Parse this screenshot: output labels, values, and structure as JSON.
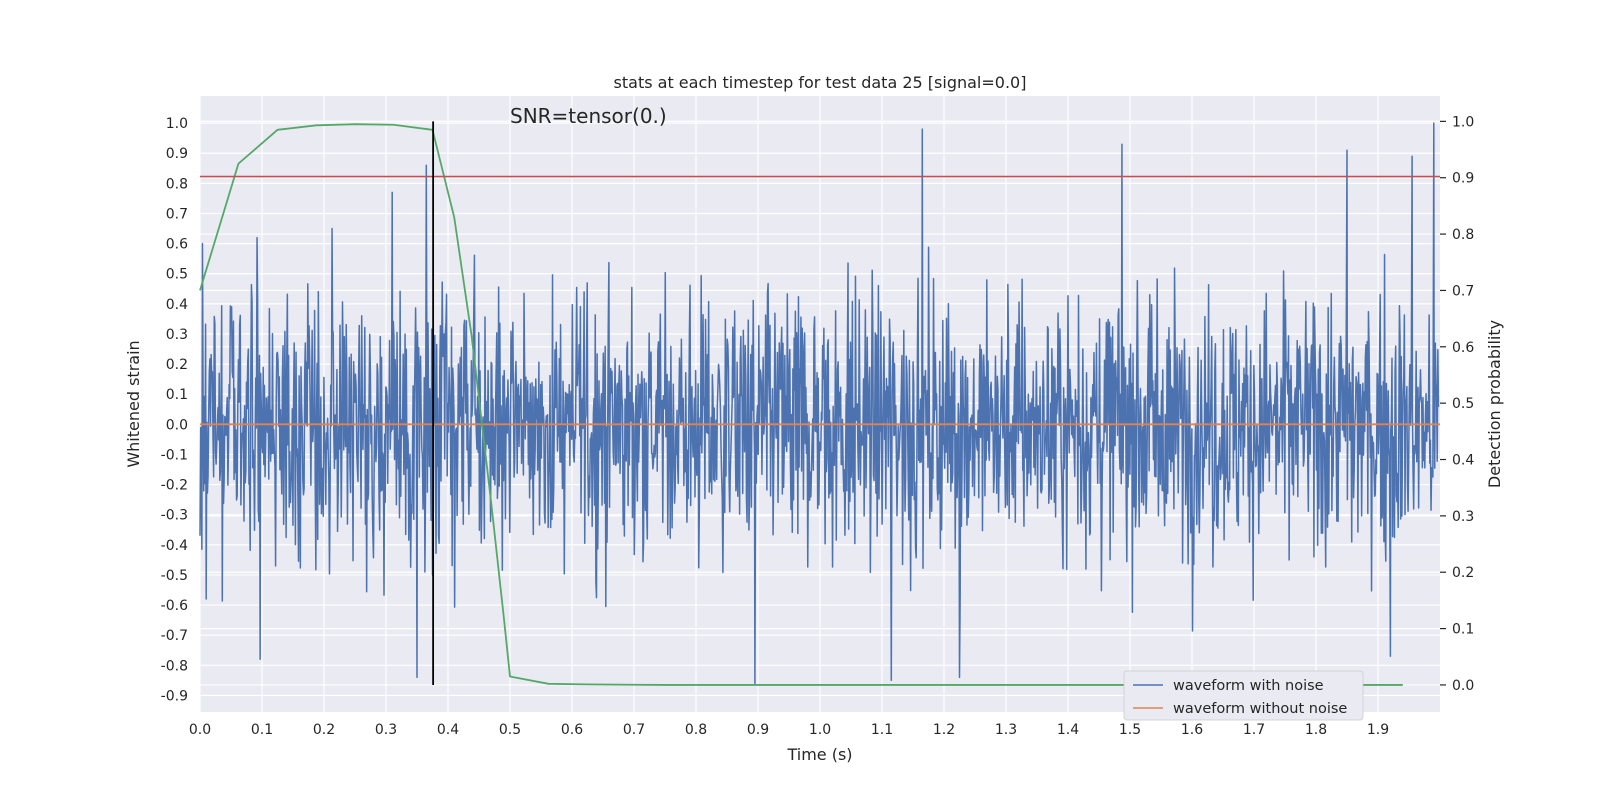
{
  "chart_data": {
    "type": "line",
    "title": "stats at each timestep for test data 25 [signal=0.0]",
    "xlabel": "Time (s)",
    "ylabel_left": "Whitened strain",
    "ylabel_right": "Detection probability",
    "annotation": "SNR=tensor(0.)",
    "xlim": [
      0.0,
      2.0
    ],
    "ylim_left": [
      -0.955,
      1.09
    ],
    "ylim_right": [
      -0.048,
      1.045
    ],
    "x_ticks": [
      0.0,
      0.1,
      0.2,
      0.3,
      0.4,
      0.5,
      0.6,
      0.7,
      0.8,
      0.9,
      1.0,
      1.1,
      1.2,
      1.3,
      1.4,
      1.5,
      1.6,
      1.7,
      1.8,
      1.9
    ],
    "y_ticks_left": [
      -0.9,
      -0.8,
      -0.7,
      -0.6,
      -0.5,
      -0.4,
      -0.3,
      -0.2,
      -0.1,
      0.0,
      0.1,
      0.2,
      0.3,
      0.4,
      0.5,
      0.6,
      0.7,
      0.8,
      0.9,
      1.0
    ],
    "y_ticks_right": [
      0.0,
      0.1,
      0.2,
      0.3,
      0.4,
      0.5,
      0.6,
      0.7,
      0.8,
      0.9,
      1.0
    ],
    "grid": true,
    "legend_position": "bottom-right",
    "colors": {
      "noisy": "#4c72b0",
      "clean": "#dd8452",
      "probability": "#55a868",
      "threshold": "#c44e52",
      "marker": "#000000",
      "background": "#eaeaf2"
    },
    "series": [
      {
        "name": "waveform with noise",
        "axis": "left",
        "note": "dense whitened noise, roughly -0.86 to 0.98, sampled across 0-2 s",
        "x": [
          0.0,
          0.004,
          0.01,
          0.092,
          0.097,
          0.213,
          0.31,
          0.35,
          0.365,
          0.375,
          0.895,
          1.115,
          1.165,
          1.225,
          1.487,
          1.85,
          1.92,
          1.955,
          1.99
        ],
        "values": [
          -0.37,
          0.6,
          -0.58,
          0.62,
          -0.78,
          0.65,
          0.77,
          -0.84,
          0.86,
          -0.5,
          -0.86,
          -0.85,
          0.98,
          -0.84,
          0.93,
          0.91,
          -0.77,
          0.89,
          1.0
        ]
      },
      {
        "name": "waveform without noise",
        "axis": "left",
        "x": [
          0.0,
          2.0
        ],
        "values": [
          0.0,
          0.0
        ]
      },
      {
        "name": "detection probability",
        "axis": "right",
        "x": [
          0.0,
          0.062,
          0.125,
          0.188,
          0.25,
          0.312,
          0.375,
          0.41,
          0.438,
          0.47,
          0.49,
          0.5,
          0.562,
          0.625,
          0.75,
          1.0,
          1.5,
          1.94
        ],
        "values": [
          0.7,
          0.925,
          0.985,
          0.993,
          0.995,
          0.994,
          0.985,
          0.83,
          0.62,
          0.32,
          0.12,
          0.015,
          0.002,
          0.001,
          0.0,
          0.0,
          0.0,
          0.0
        ]
      }
    ],
    "threshold_right": 0.902,
    "marker_time": 0.376
  }
}
